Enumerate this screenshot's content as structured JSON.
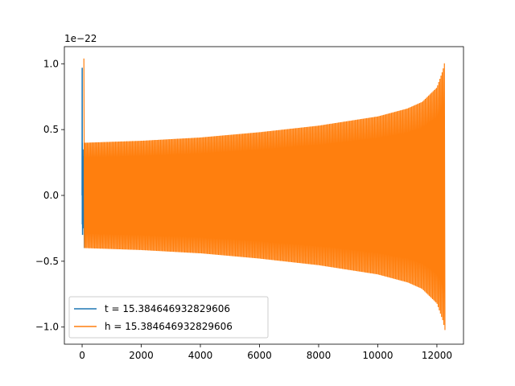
{
  "chart_data": {
    "type": "line",
    "y_scale_label": "1e−22",
    "xlim": [
      -600,
      12900
    ],
    "ylim": [
      -1.13,
      1.13
    ],
    "x_ticks": [
      0,
      2000,
      4000,
      6000,
      8000,
      10000,
      12000
    ],
    "x_tick_labels": [
      "0",
      "2000",
      "4000",
      "6000",
      "8000",
      "10000",
      "12000"
    ],
    "y_ticks": [
      1.0,
      0.5,
      0.0,
      -0.5,
      -1.0
    ],
    "y_tick_labels": [
      "1.0",
      "0.5",
      "0.0",
      "−0.5",
      "−1.0"
    ],
    "legend_position": "lower-left",
    "series": [
      {
        "name": "t = 15.384646932829606",
        "color": "#1f77b4",
        "x": [
          0,
          3,
          6,
          9,
          15,
          30,
          45,
          60,
          75,
          90
        ],
        "y": [
          0.0,
          0.97,
          -0.22,
          0.4,
          -0.3,
          0.35,
          -0.25,
          0.3,
          -0.4,
          0.4
        ]
      },
      {
        "name": "h = 15.384646932829606",
        "color": "#ff7f0e",
        "x_range": [
          60,
          12290
        ],
        "envelope": {
          "x": [
            60,
            2000,
            4000,
            6000,
            8000,
            10000,
            11000,
            11500,
            12000,
            12200,
            12290
          ],
          "amplitude": [
            0.4,
            0.415,
            0.44,
            0.48,
            0.53,
            0.6,
            0.66,
            0.71,
            0.82,
            0.95,
            1.04
          ]
        }
      }
    ]
  }
}
